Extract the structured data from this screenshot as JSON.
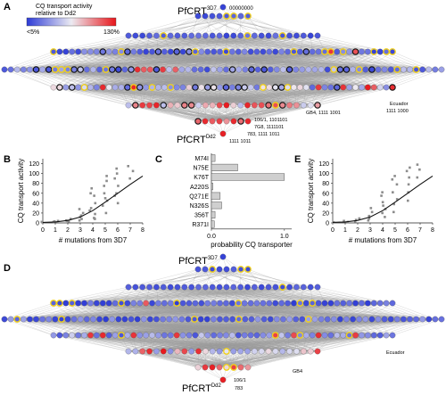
{
  "colors": {
    "node_low": "#2d3bd6",
    "node_mid": "#ecebf2",
    "node_high": "#e8161b",
    "mut_outline": "#f2d117",
    "edge": "#9a9a9a",
    "scatter": "#8c8c8c",
    "fit_line": "#111111",
    "bar_fill": "#cfcfcf"
  },
  "panels": {
    "A": {
      "letter": "A",
      "top_label_main": "PfCRT",
      "top_label_sup": "3D7",
      "top_code": "00000000",
      "bottom_label_main": "PfCRT",
      "bottom_label_sup": "Dd2",
      "legend_title": [
        "CQ transport activity",
        "relative to Dd2"
      ],
      "legend_low": "<5%",
      "legend_high": "130%",
      "annotations": [
        "Ecuador",
        "1111 1000",
        "GB4, 1111 1001",
        "106/1, 1101101",
        "7G8, 1111101",
        "783, 1111 1011",
        "1111 1011"
      ]
    },
    "B": {
      "letter": "B"
    },
    "C": {
      "letter": "C"
    },
    "E": {
      "letter": "E"
    },
    "D": {
      "letter": "D",
      "top_label_main": "PfCRT",
      "top_label_sup": "3D7",
      "bottom_label_main": "PfCRT",
      "bottom_label_sup": "Dd2",
      "annotations": [
        "Ecuador",
        "GB4",
        "106/1",
        "783"
      ]
    }
  },
  "chart_data": [
    {
      "type": "scatter",
      "panel": "B",
      "xlabel": "# mutations from 3D7",
      "ylabel": "CQ transport activity",
      "xlim": [
        0,
        8
      ],
      "ylim": [
        0,
        130
      ],
      "xticks": [
        0,
        1,
        2,
        3,
        4,
        5,
        6,
        7,
        8
      ],
      "yticks": [
        0,
        20,
        40,
        60,
        80,
        100,
        120
      ],
      "points": [
        [
          0,
          2
        ],
        [
          1,
          2
        ],
        [
          1,
          4
        ],
        [
          1,
          3
        ],
        [
          2,
          3
        ],
        [
          2,
          5
        ],
        [
          2,
          8
        ],
        [
          2,
          4
        ],
        [
          3,
          5
        ],
        [
          3,
          12
        ],
        [
          3,
          20
        ],
        [
          3,
          8
        ],
        [
          3,
          28
        ],
        [
          3,
          15
        ],
        [
          4,
          10
        ],
        [
          4,
          25
        ],
        [
          4,
          40
        ],
        [
          4,
          55
        ],
        [
          4,
          18
        ],
        [
          4,
          60
        ],
        [
          4,
          30
        ],
        [
          4,
          70
        ],
        [
          4,
          8
        ],
        [
          5,
          20
        ],
        [
          5,
          45
        ],
        [
          5,
          60
        ],
        [
          5,
          75
        ],
        [
          5,
          85
        ],
        [
          5,
          35
        ],
        [
          5,
          95
        ],
        [
          5,
          50
        ],
        [
          6,
          40
        ],
        [
          6,
          60
        ],
        [
          6,
          75
        ],
        [
          6,
          90
        ],
        [
          6,
          100
        ],
        [
          6,
          110
        ],
        [
          6,
          55
        ],
        [
          7,
          90
        ],
        [
          7,
          115
        ],
        [
          7,
          105
        ]
      ],
      "fit": [
        [
          0,
          1
        ],
        [
          1,
          2
        ],
        [
          2,
          5
        ],
        [
          3,
          12
        ],
        [
          4,
          25
        ],
        [
          5,
          42
        ],
        [
          6,
          60
        ],
        [
          7,
          78
        ],
        [
          8,
          95
        ]
      ]
    },
    {
      "type": "bar",
      "panel": "C",
      "orientation": "horizontal",
      "categories": [
        "M74I",
        "N75E",
        "K76T",
        "A220S",
        "Q271E",
        "N326S",
        "356T",
        "R371I"
      ],
      "values": [
        0.05,
        0.36,
        1.0,
        0.02,
        0.12,
        0.14,
        0.05,
        0.04
      ],
      "xlabel": "probability CQ transporter",
      "xticks": [
        0.0,
        1.0
      ],
      "xlim": [
        0,
        1.1
      ]
    },
    {
      "type": "scatter",
      "panel": "E",
      "xlabel": "# mutations from 3D7",
      "ylabel": "CQ transport activity",
      "xlim": [
        0,
        8
      ],
      "ylim": [
        0,
        130
      ],
      "xticks": [
        0,
        1,
        2,
        3,
        4,
        5,
        6,
        7,
        8
      ],
      "yticks": [
        0,
        20,
        40,
        60,
        80,
        100,
        120
      ],
      "points": [
        [
          0,
          1
        ],
        [
          1,
          2
        ],
        [
          1,
          4
        ],
        [
          2,
          3
        ],
        [
          2,
          6
        ],
        [
          2,
          9
        ],
        [
          3,
          5
        ],
        [
          3,
          14
        ],
        [
          3,
          22
        ],
        [
          3,
          9
        ],
        [
          3,
          30
        ],
        [
          4,
          12
        ],
        [
          4,
          28
        ],
        [
          4,
          42
        ],
        [
          4,
          55
        ],
        [
          4,
          20
        ],
        [
          4,
          62
        ],
        [
          4,
          35
        ],
        [
          5,
          22
        ],
        [
          5,
          48
        ],
        [
          5,
          62
        ],
        [
          5,
          78
        ],
        [
          5,
          88
        ],
        [
          5,
          38
        ],
        [
          5,
          95
        ],
        [
          6,
          45
        ],
        [
          6,
          62
        ],
        [
          6,
          78
        ],
        [
          6,
          92
        ],
        [
          6,
          105
        ],
        [
          6,
          112
        ],
        [
          7,
          92
        ],
        [
          7,
          118
        ],
        [
          7,
          108
        ]
      ],
      "fit": [
        [
          0,
          1
        ],
        [
          1,
          2
        ],
        [
          2,
          5
        ],
        [
          3,
          12
        ],
        [
          4,
          25
        ],
        [
          5,
          42
        ],
        [
          6,
          60
        ],
        [
          7,
          78
        ],
        [
          8,
          95
        ]
      ]
    }
  ]
}
